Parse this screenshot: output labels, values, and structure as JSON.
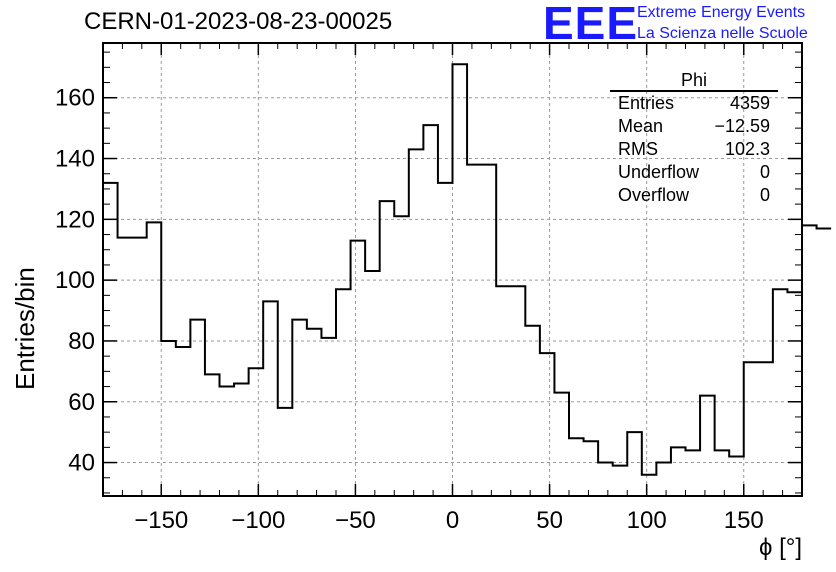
{
  "header": {
    "title": "CERN-01-2023-08-23-00025",
    "logo": "EEE",
    "logo_line1": "Extreme Energy Events",
    "logo_line2": "La Scienza nelle Scuole"
  },
  "stats": {
    "name": "Phi",
    "rows": [
      {
        "label": "Entries",
        "value": "4359"
      },
      {
        "label": "Mean",
        "value": "−12.59"
      },
      {
        "label": "RMS",
        "value": "102.3"
      },
      {
        "label": "Underflow",
        "value": "0"
      },
      {
        "label": "Overflow",
        "value": "0"
      }
    ]
  },
  "chart_data": {
    "type": "bar",
    "style": "step-histogram",
    "title": "CERN-01-2023-08-23-00025",
    "xlabel": "ϕ [°]",
    "ylabel": "Entries/bin",
    "xlim": [
      -180,
      180
    ],
    "ylim": [
      29,
      178
    ],
    "bin_width": 7.5,
    "grid": true,
    "x_ticks": [
      -150,
      -100,
      -50,
      0,
      50,
      100,
      150
    ],
    "x_tick_labels": [
      "−150",
      "−100",
      "−50",
      "0",
      "50",
      "100",
      "150"
    ],
    "y_ticks": [
      40,
      60,
      80,
      100,
      120,
      140,
      160
    ],
    "y_tick_labels": [
      "40",
      "60",
      "80",
      "100",
      "120",
      "140",
      "160"
    ],
    "values": [
      132,
      114,
      114,
      119,
      80,
      78,
      87,
      69,
      65,
      66,
      71,
      93,
      58,
      87,
      84,
      81,
      97,
      113,
      103,
      126,
      121,
      143,
      151,
      132,
      171,
      138,
      138,
      98,
      98,
      85,
      76,
      63,
      48,
      47,
      40,
      39,
      50,
      36,
      40,
      45,
      44,
      62,
      44,
      42,
      73,
      73,
      97,
      96,
      118,
      117
    ]
  }
}
